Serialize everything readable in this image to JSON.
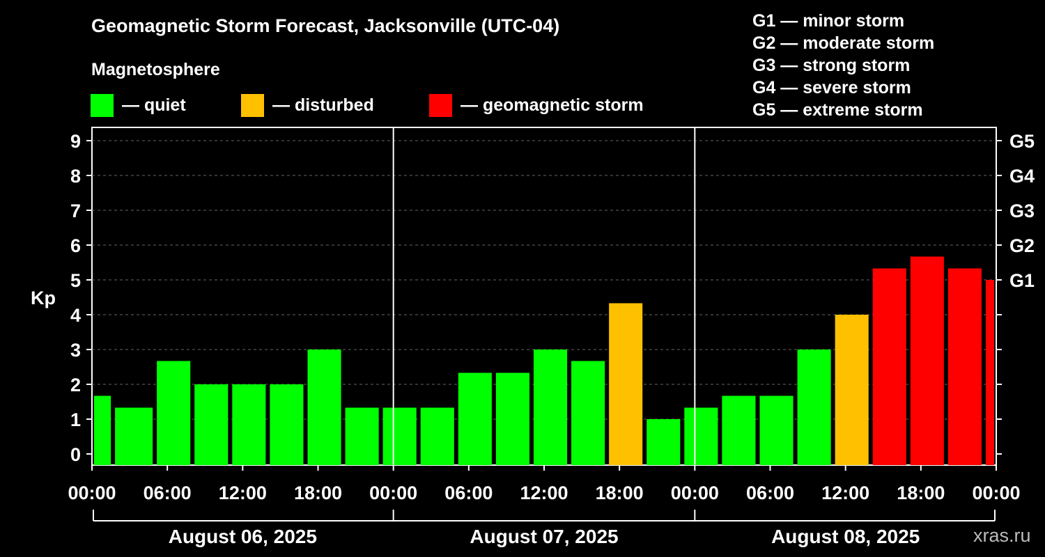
{
  "title": "Geomagnetic Storm Forecast, Jacksonville (UTC-04)",
  "magnetosphere": {
    "title": "Magnetosphere",
    "items": [
      {
        "label": "— quiet",
        "color": "#00ff00"
      },
      {
        "label": "— disturbed",
        "color": "#ffc000"
      },
      {
        "label": "— geomagnetic storm",
        "color": "#ff0000"
      }
    ]
  },
  "g_legend": [
    "G1 — minor storm",
    "G2 — moderate storm",
    "G3 — strong storm",
    "G4 — severe storm",
    "G5 — extreme storm"
  ],
  "watermark": "xras.ru",
  "chart_data": {
    "type": "bar",
    "ylabel": "Kp",
    "ylim": [
      0,
      9
    ],
    "y_ticks": [
      "0",
      "1",
      "2",
      "3",
      "4",
      "5",
      "6",
      "7",
      "8",
      "9"
    ],
    "right_axis_labels": [
      {
        "kp": 5,
        "label": "G1"
      },
      {
        "kp": 6,
        "label": "G2"
      },
      {
        "kp": 7,
        "label": "G3"
      },
      {
        "kp": 8,
        "label": "G4"
      },
      {
        "kp": 9,
        "label": "G5"
      }
    ],
    "x_tick_labels": [
      "00:00",
      "06:00",
      "12:00",
      "18:00",
      "00:00",
      "06:00",
      "12:00",
      "18:00",
      "00:00",
      "06:00",
      "12:00",
      "18:00",
      "00:00"
    ],
    "days": [
      "August 06, 2025",
      "August 07, 2025",
      "August 08, 2025"
    ],
    "hours_total": 72,
    "grid": "dashed horizontal at each Kp level",
    "bars": [
      {
        "start_hour": 0,
        "end_hour": 1.67,
        "kp": 1.67,
        "status": "quiet"
      },
      {
        "start_hour": 1.67,
        "end_hour": 5,
        "kp": 1.33,
        "status": "quiet"
      },
      {
        "start_hour": 5,
        "end_hour": 8,
        "kp": 2.67,
        "status": "quiet"
      },
      {
        "start_hour": 8,
        "end_hour": 11,
        "kp": 2.0,
        "status": "quiet"
      },
      {
        "start_hour": 11,
        "end_hour": 14,
        "kp": 2.0,
        "status": "quiet"
      },
      {
        "start_hour": 14,
        "end_hour": 17,
        "kp": 2.0,
        "status": "quiet"
      },
      {
        "start_hour": 17,
        "end_hour": 20,
        "kp": 3.0,
        "status": "quiet"
      },
      {
        "start_hour": 20,
        "end_hour": 23,
        "kp": 1.33,
        "status": "quiet"
      },
      {
        "start_hour": 23,
        "end_hour": 26,
        "kp": 1.33,
        "status": "quiet"
      },
      {
        "start_hour": 26,
        "end_hour": 29,
        "kp": 1.33,
        "status": "quiet"
      },
      {
        "start_hour": 29,
        "end_hour": 32,
        "kp": 2.33,
        "status": "quiet"
      },
      {
        "start_hour": 32,
        "end_hour": 35,
        "kp": 2.33,
        "status": "quiet"
      },
      {
        "start_hour": 35,
        "end_hour": 38,
        "kp": 3.0,
        "status": "quiet"
      },
      {
        "start_hour": 38,
        "end_hour": 41,
        "kp": 2.67,
        "status": "quiet"
      },
      {
        "start_hour": 41,
        "end_hour": 44,
        "kp": 4.33,
        "status": "disturbed"
      },
      {
        "start_hour": 44,
        "end_hour": 47,
        "kp": 1.0,
        "status": "quiet"
      },
      {
        "start_hour": 47,
        "end_hour": 50,
        "kp": 1.33,
        "status": "quiet"
      },
      {
        "start_hour": 50,
        "end_hour": 53,
        "kp": 1.67,
        "status": "quiet"
      },
      {
        "start_hour": 53,
        "end_hour": 56,
        "kp": 1.67,
        "status": "quiet"
      },
      {
        "start_hour": 56,
        "end_hour": 59,
        "kp": 3.0,
        "status": "quiet"
      },
      {
        "start_hour": 59,
        "end_hour": 62,
        "kp": 4.0,
        "status": "disturbed"
      },
      {
        "start_hour": 62,
        "end_hour": 65,
        "kp": 5.33,
        "status": "storm"
      },
      {
        "start_hour": 65,
        "end_hour": 68,
        "kp": 5.67,
        "status": "storm"
      },
      {
        "start_hour": 68,
        "end_hour": 71,
        "kp": 5.33,
        "status": "storm"
      },
      {
        "start_hour": 71,
        "end_hour": 72,
        "kp": 5.0,
        "status": "storm"
      }
    ]
  }
}
